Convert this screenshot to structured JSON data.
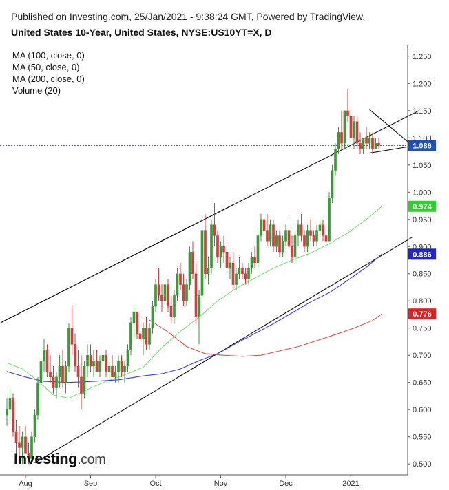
{
  "header": {
    "published": "Published on Investing.com, 25/Jan/2021 - 9:38:24 GMT, Powered by TradingView.",
    "title": "United States 10-Year, United States, NYSE:US10YT=X, D"
  },
  "indicators": [
    "MA (100, close, 0)",
    "MA (50, close, 0)",
    "MA (200, close, 0)",
    "Volume (20)"
  ],
  "logo": {
    "main": "Investing",
    "suffix": ".com"
  },
  "colors": {
    "up": "#3a9a3a",
    "down": "#d93a3a",
    "ma50": "#7ee07e",
    "ma100": "#3d3dd9",
    "ma200": "#e05050",
    "price_badge": "#1f4fb8"
  },
  "chart_data": {
    "type": "candlestick",
    "ylim": [
      0.48,
      1.27
    ],
    "y_ticks": [
      "1.250",
      "1.200",
      "1.150",
      "1.100",
      "1.050",
      "1.000",
      "0.950",
      "0.900",
      "0.850",
      "0.800",
      "0.750",
      "0.700",
      "0.650",
      "0.600",
      "0.550",
      "0.500"
    ],
    "x_ticks": [
      {
        "label": "Aug",
        "idx": 6
      },
      {
        "label": "Sep",
        "idx": 27
      },
      {
        "label": "Oct",
        "idx": 48
      },
      {
        "label": "Nov",
        "idx": 69
      },
      {
        "label": "Dec",
        "idx": 90
      },
      {
        "label": "2021",
        "idx": 111
      }
    ],
    "last_price": "1.086",
    "badges": [
      {
        "label": "1.086",
        "value": 1.086,
        "color": "#1f4fb8"
      },
      {
        "label": "0.974",
        "value": 0.974,
        "color": "#33cc33"
      },
      {
        "label": "0.886",
        "value": 0.886,
        "color": "#2222cc"
      },
      {
        "label": "0.776",
        "value": 0.776,
        "color": "#dd2222"
      }
    ],
    "candles": [
      [
        0.59,
        0.62,
        0.57,
        0.6
      ],
      [
        0.6,
        0.64,
        0.58,
        0.62
      ],
      [
        0.62,
        0.63,
        0.55,
        0.56
      ],
      [
        0.56,
        0.58,
        0.52,
        0.54
      ],
      [
        0.54,
        0.57,
        0.51,
        0.53
      ],
      [
        0.53,
        0.56,
        0.5,
        0.55
      ],
      [
        0.55,
        0.57,
        0.52,
        0.52
      ],
      [
        0.52,
        0.54,
        0.5,
        0.51
      ],
      [
        0.51,
        0.56,
        0.5,
        0.55
      ],
      [
        0.55,
        0.6,
        0.54,
        0.59
      ],
      [
        0.59,
        0.66,
        0.58,
        0.65
      ],
      [
        0.65,
        0.7,
        0.63,
        0.69
      ],
      [
        0.69,
        0.73,
        0.67,
        0.71
      ],
      [
        0.71,
        0.72,
        0.66,
        0.67
      ],
      [
        0.67,
        0.7,
        0.65,
        0.66
      ],
      [
        0.66,
        0.68,
        0.63,
        0.64
      ],
      [
        0.64,
        0.67,
        0.62,
        0.66
      ],
      [
        0.66,
        0.7,
        0.64,
        0.68
      ],
      [
        0.68,
        0.71,
        0.64,
        0.65
      ],
      [
        0.65,
        0.69,
        0.63,
        0.68
      ],
      [
        0.68,
        0.76,
        0.67,
        0.75
      ],
      [
        0.75,
        0.79,
        0.7,
        0.72
      ],
      [
        0.72,
        0.74,
        0.67,
        0.68
      ],
      [
        0.68,
        0.71,
        0.64,
        0.66
      ],
      [
        0.66,
        0.7,
        0.6,
        0.63
      ],
      [
        0.63,
        0.69,
        0.62,
        0.68
      ],
      [
        0.68,
        0.72,
        0.66,
        0.7
      ],
      [
        0.7,
        0.72,
        0.67,
        0.68
      ],
      [
        0.68,
        0.71,
        0.66,
        0.69
      ],
      [
        0.69,
        0.71,
        0.67,
        0.67
      ],
      [
        0.67,
        0.7,
        0.66,
        0.69
      ],
      [
        0.69,
        0.72,
        0.67,
        0.7
      ],
      [
        0.7,
        0.71,
        0.66,
        0.67
      ],
      [
        0.67,
        0.69,
        0.65,
        0.68
      ],
      [
        0.68,
        0.7,
        0.66,
        0.66
      ],
      [
        0.66,
        0.68,
        0.65,
        0.67
      ],
      [
        0.67,
        0.7,
        0.65,
        0.69
      ],
      [
        0.69,
        0.7,
        0.66,
        0.67
      ],
      [
        0.67,
        0.69,
        0.65,
        0.68
      ],
      [
        0.68,
        0.72,
        0.67,
        0.71
      ],
      [
        0.71,
        0.77,
        0.7,
        0.76
      ],
      [
        0.76,
        0.79,
        0.73,
        0.78
      ],
      [
        0.78,
        0.78,
        0.73,
        0.74
      ],
      [
        0.74,
        0.77,
        0.72,
        0.73
      ],
      [
        0.73,
        0.76,
        0.7,
        0.75
      ],
      [
        0.75,
        0.77,
        0.71,
        0.72
      ],
      [
        0.72,
        0.76,
        0.71,
        0.75
      ],
      [
        0.75,
        0.8,
        0.74,
        0.79
      ],
      [
        0.79,
        0.84,
        0.78,
        0.83
      ],
      [
        0.83,
        0.86,
        0.8,
        0.81
      ],
      [
        0.81,
        0.83,
        0.78,
        0.8
      ],
      [
        0.8,
        0.84,
        0.79,
        0.83
      ],
      [
        0.83,
        0.84,
        0.78,
        0.79
      ],
      [
        0.79,
        0.81,
        0.76,
        0.77
      ],
      [
        0.77,
        0.82,
        0.76,
        0.81
      ],
      [
        0.81,
        0.86,
        0.8,
        0.85
      ],
      [
        0.85,
        0.87,
        0.82,
        0.83
      ],
      [
        0.83,
        0.85,
        0.79,
        0.8
      ],
      [
        0.8,
        0.84,
        0.79,
        0.83
      ],
      [
        0.83,
        0.9,
        0.82,
        0.89
      ],
      [
        0.89,
        0.91,
        0.84,
        0.85
      ],
      [
        0.85,
        0.87,
        0.76,
        0.77
      ],
      [
        0.77,
        0.82,
        0.72,
        0.81
      ],
      [
        0.81,
        0.95,
        0.8,
        0.93
      ],
      [
        0.93,
        0.96,
        0.84,
        0.85
      ],
      [
        0.85,
        0.88,
        0.83,
        0.86
      ],
      [
        0.86,
        0.95,
        0.85,
        0.94
      ],
      [
        0.94,
        0.98,
        0.9,
        0.92
      ],
      [
        0.92,
        0.93,
        0.87,
        0.88
      ],
      [
        0.88,
        0.91,
        0.86,
        0.9
      ],
      [
        0.9,
        0.92,
        0.87,
        0.89
      ],
      [
        0.89,
        0.9,
        0.85,
        0.86
      ],
      [
        0.86,
        0.88,
        0.84,
        0.87
      ],
      [
        0.87,
        0.89,
        0.82,
        0.83
      ],
      [
        0.83,
        0.86,
        0.82,
        0.85
      ],
      [
        0.85,
        0.88,
        0.84,
        0.86
      ],
      [
        0.86,
        0.87,
        0.84,
        0.85
      ],
      [
        0.85,
        0.86,
        0.83,
        0.84
      ],
      [
        0.84,
        0.87,
        0.83,
        0.86
      ],
      [
        0.86,
        0.89,
        0.85,
        0.88
      ],
      [
        0.88,
        0.9,
        0.86,
        0.87
      ],
      [
        0.87,
        0.93,
        0.86,
        0.92
      ],
      [
        0.92,
        0.96,
        0.91,
        0.95
      ],
      [
        0.95,
        0.99,
        0.92,
        0.93
      ],
      [
        0.93,
        0.96,
        0.9,
        0.91
      ],
      [
        0.91,
        0.95,
        0.9,
        0.94
      ],
      [
        0.94,
        0.95,
        0.89,
        0.9
      ],
      [
        0.9,
        0.93,
        0.89,
        0.92
      ],
      [
        0.92,
        0.93,
        0.88,
        0.89
      ],
      [
        0.89,
        0.92,
        0.88,
        0.91
      ],
      [
        0.91,
        0.94,
        0.9,
        0.93
      ],
      [
        0.93,
        0.95,
        0.89,
        0.9
      ],
      [
        0.9,
        0.92,
        0.87,
        0.88
      ],
      [
        0.88,
        0.93,
        0.87,
        0.92
      ],
      [
        0.92,
        0.95,
        0.9,
        0.94
      ],
      [
        0.94,
        0.96,
        0.91,
        0.92
      ],
      [
        0.92,
        0.93,
        0.89,
        0.9
      ],
      [
        0.9,
        0.94,
        0.89,
        0.93
      ],
      [
        0.93,
        0.95,
        0.91,
        0.92
      ],
      [
        0.92,
        0.93,
        0.9,
        0.91
      ],
      [
        0.91,
        0.94,
        0.9,
        0.93
      ],
      [
        0.93,
        0.95,
        0.92,
        0.94
      ],
      [
        0.94,
        0.95,
        0.91,
        0.92
      ],
      [
        0.92,
        0.93,
        0.9,
        0.91
      ],
      [
        0.91,
        1.0,
        0.91,
        0.99
      ],
      [
        0.99,
        1.05,
        0.98,
        1.04
      ],
      [
        1.04,
        1.09,
        1.03,
        1.08
      ],
      [
        1.08,
        1.12,
        1.07,
        1.11
      ],
      [
        1.11,
        1.15,
        1.08,
        1.09
      ],
      [
        1.09,
        1.15,
        1.08,
        1.15
      ],
      [
        1.15,
        1.19,
        1.13,
        1.14
      ],
      [
        1.14,
        1.15,
        1.09,
        1.1
      ],
      [
        1.1,
        1.14,
        1.08,
        1.13
      ],
      [
        1.13,
        1.14,
        1.08,
        1.09
      ],
      [
        1.09,
        1.11,
        1.07,
        1.08
      ],
      [
        1.08,
        1.1,
        1.07,
        1.1
      ],
      [
        1.1,
        1.12,
        1.08,
        1.09
      ],
      [
        1.09,
        1.11,
        1.08,
        1.1
      ],
      [
        1.1,
        1.11,
        1.07,
        1.08
      ],
      [
        1.08,
        1.1,
        1.08,
        1.09
      ],
      [
        1.09,
        1.1,
        1.08,
        1.086
      ]
    ],
    "series": [
      {
        "name": "MA (50, close, 0)",
        "color": "#7ee07e",
        "points": [
          [
            0,
            0.686
          ],
          [
            5,
            0.675
          ],
          [
            10,
            0.653
          ],
          [
            15,
            0.627
          ],
          [
            20,
            0.621
          ],
          [
            26,
            0.637
          ],
          [
            32,
            0.652
          ],
          [
            38,
            0.664
          ],
          [
            44,
            0.678
          ],
          [
            50,
            0.714
          ],
          [
            56,
            0.744
          ],
          [
            62,
            0.77
          ],
          [
            68,
            0.8
          ],
          [
            74,
            0.823
          ],
          [
            80,
            0.842
          ],
          [
            86,
            0.86
          ],
          [
            92,
            0.875
          ],
          [
            98,
            0.888
          ],
          [
            104,
            0.905
          ],
          [
            110,
            0.925
          ],
          [
            116,
            0.95
          ],
          [
            121,
            0.974
          ]
        ]
      },
      {
        "name": "MA (100, close, 0)",
        "color": "#3d3dd9",
        "points": [
          [
            0,
            0.67
          ],
          [
            6,
            0.66
          ],
          [
            12,
            0.652
          ],
          [
            20,
            0.65
          ],
          [
            28,
            0.652
          ],
          [
            36,
            0.655
          ],
          [
            44,
            0.662
          ],
          [
            50,
            0.666
          ],
          [
            56,
            0.675
          ],
          [
            62,
            0.69
          ],
          [
            68,
            0.703
          ],
          [
            74,
            0.722
          ],
          [
            80,
            0.74
          ],
          [
            86,
            0.758
          ],
          [
            92,
            0.778
          ],
          [
            98,
            0.798
          ],
          [
            104,
            0.815
          ],
          [
            110,
            0.838
          ],
          [
            116,
            0.862
          ],
          [
            121,
            0.886
          ]
        ]
      },
      {
        "name": "MA (200, close, 0)",
        "color": "#e05050",
        "points": [
          [
            46,
            0.765
          ],
          [
            52,
            0.743
          ],
          [
            58,
            0.716
          ],
          [
            64,
            0.703
          ],
          [
            70,
            0.7
          ],
          [
            76,
            0.698
          ],
          [
            82,
            0.7
          ],
          [
            88,
            0.708
          ],
          [
            94,
            0.716
          ],
          [
            100,
            0.727
          ],
          [
            106,
            0.738
          ],
          [
            112,
            0.75
          ],
          [
            118,
            0.764
          ],
          [
            121,
            0.776
          ]
        ]
      }
    ]
  }
}
